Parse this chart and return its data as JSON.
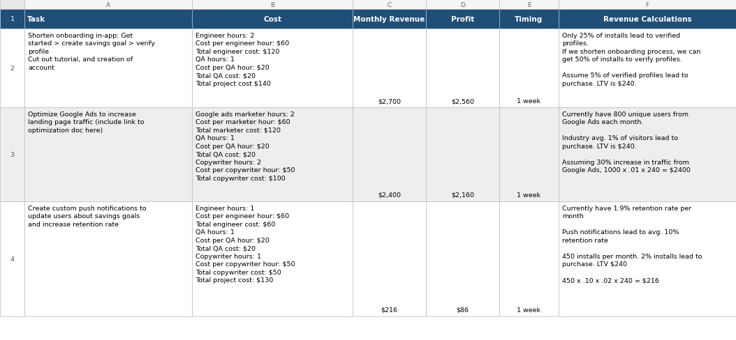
{
  "header_row": [
    "Task",
    "Cost",
    "Monthly Revenue",
    "Profit",
    "Timing",
    "Revenue Calculations"
  ],
  "header_bg": "#1F4E79",
  "header_text_color": "#FFFFFF",
  "grid_color": "#BBBBBB",
  "body_text_color": "#000000",
  "row_index_color": "#555555",
  "col_letter_text": "#666666",
  "background_color": "#FFFFFF",
  "alt_row_bg": "#EEEEEE",
  "rows": [
    {
      "task": "Shorten onboarding in-app: Get\nstarted > create savings goal > verify\nprofile\nCut out tutorial, and creation of\naccount",
      "cost": "Engineer hours: 2\nCost per engineer hour: $60\nTotal engineer cost: $120\nQA hours: 1\nCost per QA hour: $20\nTotal QA cost: $20\nTotal project cost $140",
      "monthly_revenue": "$2,700",
      "profit": "$2,560",
      "timing": "1 week",
      "revenue_calc": "Only 25% of installs lead to verified\nprofiles.\nIf we shorten onboarding process, we can\nget 50% of installs to verify profiles.\n\nAssume 5% of verified profiles lead to\npurchase. LTV is $240.",
      "row_num": "2",
      "alt_bg": false
    },
    {
      "task": "Optimize Google Ads to increase\nlanding page traffic (include link to\noptimization doc here)",
      "cost": "Google ads marketer hours: 2\nCost per marketer hour: $60\nTotal marketer cost: $120\nQA hours: 1\nCost per QA hour: $20\nTotal QA cost: $20\nCopywriter hours: 2\nCost per copywriter hour: $50\nTotal copywriter cost: $100",
      "monthly_revenue": "$2,400",
      "profit": "$2,160",
      "timing": "1 week",
      "revenue_calc": "Currently have 800 unique users from\nGoogle Ads each month.\n\nIndustry avg. 1% of visitors lead to\npurchase. LTV is $240.\n\nAssuming 30% increase in traffic from\nGoogle Ads, 1000 x .01 x 240 = $2400",
      "row_num": "3",
      "alt_bg": true
    },
    {
      "task": "Create custom push notifications to\nupdate users about savings goals\nand increase retention rate",
      "cost": "Engineer hours: 1\nCost per engineer hour: $60\nTotal engineer cost: $60\nQA hours: 1\nCost per QA hour: $20\nTotal QA cost: $20\nCopywriter hours: 1\nCost per copywriter hour: $50\nTotal copywriter cost: $50\nTotal project cost: $130",
      "monthly_revenue": "$216",
      "profit": "$86",
      "timing": "1 week",
      "revenue_calc": "Currently have 1.9% retention rate per\nmonth\n\nPush notifications lead to avg. 10%\nretention rate\n\n450 installs per month. 2% installs lead to\npurchase. LTV $240\n\n450 x .10 x .02 x 240 = $216",
      "row_num": "4",
      "alt_bg": false
    }
  ],
  "font_size_header": 7.5,
  "font_size_body": 6.8,
  "font_size_col_letter": 6.5
}
